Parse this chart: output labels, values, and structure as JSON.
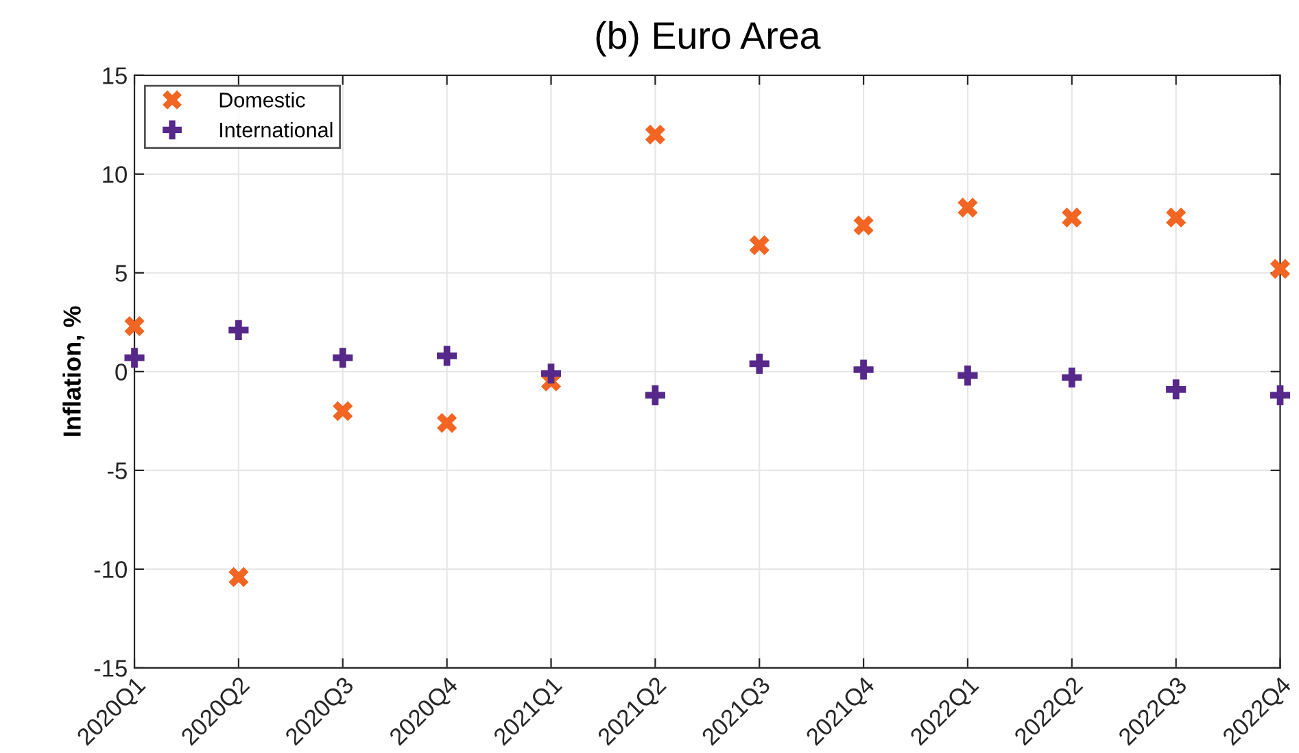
{
  "chart_data": {
    "type": "scatter",
    "title": "(b) Euro Area",
    "ylabel": "Inflation, %",
    "categories": [
      "2020Q1",
      "2020Q2",
      "2020Q3",
      "2020Q4",
      "2021Q1",
      "2021Q2",
      "2021Q3",
      "2021Q4",
      "2022Q1",
      "2022Q2",
      "2022Q3",
      "2022Q4"
    ],
    "series": [
      {
        "name": "Domestic",
        "color": "#f26522",
        "marker": "cross",
        "values": [
          2.3,
          -10.4,
          -2.0,
          -2.6,
          -0.5,
          12.0,
          6.4,
          7.4,
          8.3,
          7.8,
          7.8,
          5.2
        ]
      },
      {
        "name": "International",
        "color": "#56288a",
        "marker": "plus",
        "values": [
          0.7,
          2.1,
          0.7,
          0.8,
          -0.1,
          -1.2,
          0.4,
          0.1,
          -0.2,
          -0.3,
          -0.9,
          -1.2
        ]
      }
    ],
    "ylim": [
      -15,
      15
    ],
    "yticks": [
      -15,
      -10,
      -5,
      0,
      5,
      10,
      15
    ],
    "grid": true,
    "legend": "top left"
  }
}
